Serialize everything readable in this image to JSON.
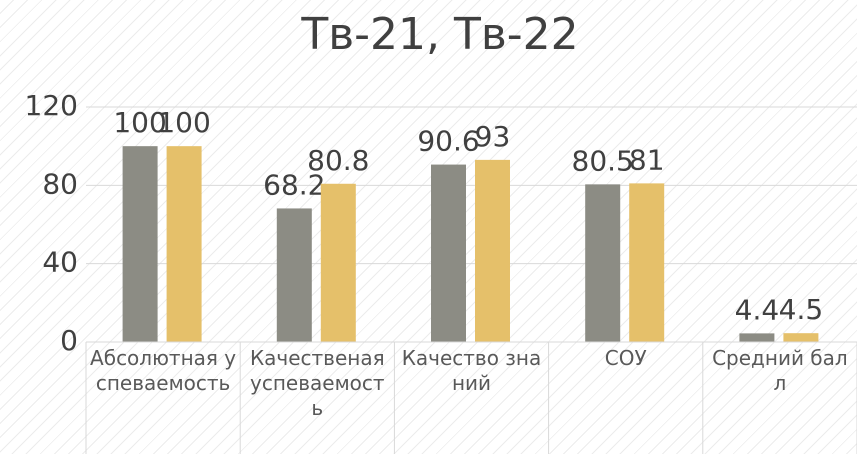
{
  "chart_data": {
    "type": "bar",
    "title": "Тв-21, Тв-22",
    "categories": [
      "Абсолютная успеваемость",
      "Качественая успеваемость",
      "Качество знаний",
      "СОУ",
      "Средний балл"
    ],
    "series": [
      {
        "color": "#8c8c84",
        "values": [
          100,
          68.2,
          90.6,
          80.5,
          4.4
        ]
      },
      {
        "color": "#e5c06a",
        "values": [
          100,
          80.8,
          93,
          81,
          4.5
        ]
      }
    ],
    "ylim": [
      0,
      120
    ],
    "yticks": [
      0,
      40,
      80,
      120
    ],
    "grid": true
  }
}
